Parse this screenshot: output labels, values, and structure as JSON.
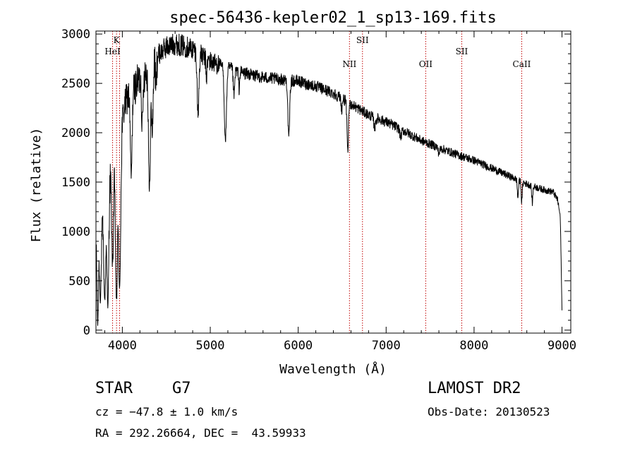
{
  "chart_data": {
    "type": "line",
    "title": "spec-56436-kepler02_1_sp13-169.fits",
    "xlabel": "Wavelength (Å)",
    "ylabel": "Flux (relative)",
    "xlim": [
      3700,
      9100
    ],
    "ylim": [
      -30,
      3030
    ],
    "x_ticks": [
      4000,
      5000,
      6000,
      7000,
      8000,
      9000
    ],
    "y_ticks": [
      0,
      500,
      1000,
      1500,
      2000,
      2500,
      3000
    ],
    "grid": false,
    "legend": "none",
    "series_color": "#000000",
    "line_marker_color": "#c00000",
    "line_markers": [
      {
        "label": "K",
        "wavelength": 3934,
        "label_row": 1
      },
      {
        "label": "HeI",
        "wavelength": 3889,
        "label_row": 2
      },
      {
        "label": "",
        "wavelength": 3969,
        "label_row": 0
      },
      {
        "label": "NII",
        "wavelength": 6583,
        "label_row": 3
      },
      {
        "label": "SII",
        "wavelength": 6731,
        "label_row": 1
      },
      {
        "label": "OII",
        "wavelength": 7450,
        "label_row": 3
      },
      {
        "label": "SII",
        "wavelength": 7860,
        "label_row": 2
      },
      {
        "label": "CaII",
        "wavelength": 8542,
        "label_row": 3
      }
    ],
    "continuum": [
      [
        3700,
        900
      ],
      [
        3750,
        1050
      ],
      [
        3800,
        1300
      ],
      [
        3850,
        1500
      ],
      [
        3900,
        1700
      ],
      [
        3950,
        1900
      ],
      [
        4000,
        2150
      ],
      [
        4050,
        2350
      ],
      [
        4100,
        2400
      ],
      [
        4200,
        2550
      ],
      [
        4300,
        2650
      ],
      [
        4400,
        2780
      ],
      [
        4500,
        2870
      ],
      [
        4600,
        2900
      ],
      [
        4700,
        2880
      ],
      [
        4800,
        2850
      ],
      [
        4900,
        2780
      ],
      [
        5000,
        2720
      ],
      [
        5200,
        2660
      ],
      [
        5400,
        2600
      ],
      [
        5600,
        2560
      ],
      [
        5800,
        2540
      ],
      [
        6000,
        2520
      ],
      [
        6200,
        2470
      ],
      [
        6400,
        2400
      ],
      [
        6600,
        2290
      ],
      [
        6800,
        2180
      ],
      [
        7000,
        2110
      ],
      [
        7200,
        2020
      ],
      [
        7400,
        1920
      ],
      [
        7600,
        1850
      ],
      [
        7800,
        1780
      ],
      [
        8000,
        1720
      ],
      [
        8200,
        1640
      ],
      [
        8400,
        1560
      ],
      [
        8600,
        1480
      ],
      [
        8800,
        1420
      ],
      [
        8900,
        1400
      ],
      [
        8950,
        1320
      ],
      [
        8980,
        1150
      ],
      [
        8990,
        700
      ],
      [
        9000,
        200
      ]
    ],
    "absorption_features": [
      {
        "center": 3720,
        "depth": 0.95,
        "width": 8
      },
      {
        "center": 3750,
        "depth": 0.7,
        "width": 10
      },
      {
        "center": 3800,
        "depth": 0.75,
        "width": 12
      },
      {
        "center": 3835,
        "depth": 0.85,
        "width": 10
      },
      {
        "center": 3889,
        "depth": 0.6,
        "width": 10
      },
      {
        "center": 3934,
        "depth": 0.85,
        "width": 12
      },
      {
        "center": 3969,
        "depth": 0.8,
        "width": 12
      },
      {
        "center": 4101,
        "depth": 0.35,
        "width": 10
      },
      {
        "center": 4227,
        "depth": 0.2,
        "width": 8
      },
      {
        "center": 4308,
        "depth": 0.48,
        "width": 10
      },
      {
        "center": 4340,
        "depth": 0.25,
        "width": 10
      },
      {
        "center": 4383,
        "depth": 0.12,
        "width": 6
      },
      {
        "center": 4861,
        "depth": 0.22,
        "width": 10
      },
      {
        "center": 4957,
        "depth": 0.07,
        "width": 6
      },
      {
        "center": 5172,
        "depth": 0.28,
        "width": 12
      },
      {
        "center": 5270,
        "depth": 0.1,
        "width": 8
      },
      {
        "center": 5328,
        "depth": 0.07,
        "width": 6
      },
      {
        "center": 5893,
        "depth": 0.23,
        "width": 10
      },
      {
        "center": 6495,
        "depth": 0.05,
        "width": 6
      },
      {
        "center": 6563,
        "depth": 0.22,
        "width": 8
      },
      {
        "center": 6870,
        "depth": 0.05,
        "width": 10
      },
      {
        "center": 7165,
        "depth": 0.04,
        "width": 10
      },
      {
        "center": 7600,
        "depth": 0.03,
        "width": 10
      },
      {
        "center": 8498,
        "depth": 0.12,
        "width": 6
      },
      {
        "center": 8542,
        "depth": 0.14,
        "width": 6
      },
      {
        "center": 8662,
        "depth": 0.12,
        "width": 6
      }
    ],
    "noise_amplitude": 0.025
  },
  "info": {
    "class_label": "STAR",
    "subclass": "G7",
    "survey": "LAMOST DR2",
    "cz": "cz = −47.8 ± 1.0 km/s",
    "obs_date": "Obs-Date: 20130523",
    "coords": "RA = 292.26664, DEC =  43.59933"
  }
}
